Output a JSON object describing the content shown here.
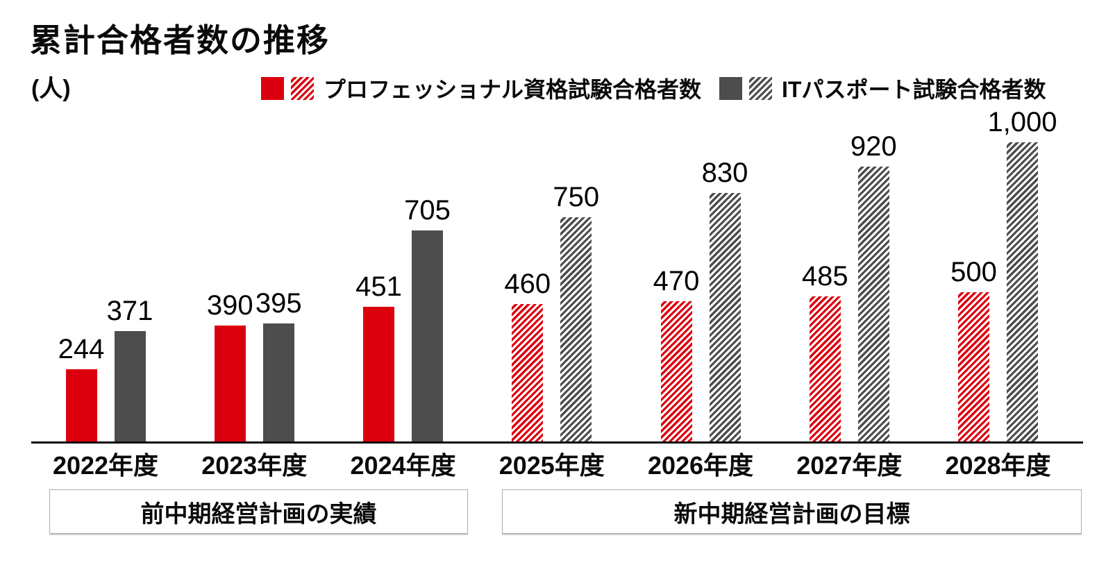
{
  "title": "累計合格者数の推移",
  "unit_label": "(人)",
  "colors": {
    "professional_red": "#dc000f",
    "it_passport_gray": "#4d4d4d",
    "axis_black": "#0a0a0a",
    "box_border_gray": "#aaaaaa"
  },
  "legend": {
    "position": "top",
    "items": [
      {
        "key": "professional",
        "label": "プロフェッショナル資格試験合格者数",
        "color": "#dc000f",
        "swatches": [
          "solid",
          "hatched"
        ]
      },
      {
        "key": "it-passport",
        "label": "ITパスポート試験合格者数",
        "color": "#4d4d4d",
        "swatches": [
          "solid",
          "hatched"
        ]
      }
    ]
  },
  "chart_data": {
    "type": "bar",
    "title": "累計合格者数の推移",
    "ylabel": "(人)",
    "xlabel": "",
    "ylim": [
      0,
      1050
    ],
    "grid": false,
    "legend_position": "top",
    "bar_value_labels": true,
    "categories": [
      "2022年度",
      "2023年度",
      "2024年度",
      "2025年度",
      "2026年度",
      "2027年度",
      "2028年度"
    ],
    "series": [
      {
        "key": "professional",
        "name": "プロフェッショナル資格試験合格者数",
        "color": "#dc000f",
        "values": [
          244,
          390,
          451,
          460,
          470,
          485,
          500
        ]
      },
      {
        "key": "it-passport",
        "name": "ITパスポート試験合格者数",
        "color": "#4d4d4d",
        "values": [
          371,
          395,
          705,
          750,
          830,
          920,
          1000
        ]
      }
    ],
    "hatched_from_index": 3,
    "style_note": "solid fill = actual results (2022-2024), diagonal hatched fill = targets (2025-2028)",
    "annotations": [
      {
        "label": "前中期経営計画の実績",
        "categories": [
          "2022年度",
          "2023年度",
          "2024年度"
        ]
      },
      {
        "label": "新中期経営計画の目標",
        "categories": [
          "2025年度",
          "2026年度",
          "2027年度",
          "2028年度"
        ]
      }
    ]
  }
}
